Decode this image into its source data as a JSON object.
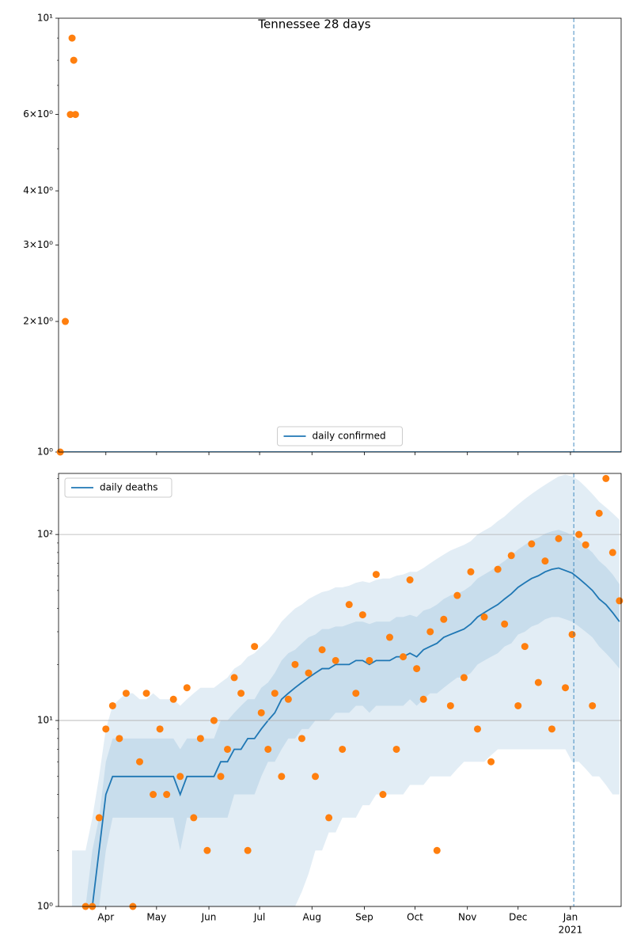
{
  "chart_data": [
    {
      "type": "log-scatter-line",
      "title": "Tennessee 28 days",
      "xlim": [
        0,
        333
      ],
      "ylim": [
        1,
        10
      ],
      "yticks": [
        {
          "value": 1,
          "label": "10⁰"
        },
        {
          "value": 2,
          "label": "2×10⁰"
        },
        {
          "value": 3,
          "label": "3×10⁰"
        },
        {
          "value": 4,
          "label": "4×10⁰"
        },
        {
          "value": 6,
          "label": "6×10⁰"
        },
        {
          "value": 10,
          "label": "10¹"
        }
      ],
      "minor_yticks": [
        5,
        7,
        8,
        9
      ],
      "log_scale": true,
      "grid": false,
      "legend": "lower center",
      "vline": 305,
      "series": [
        {
          "name": "daily confirmed",
          "kind": "line",
          "color": "#1f77b4",
          "x": [
            0,
            333
          ],
          "values": [
            1,
            1
          ]
        },
        {
          "kind": "dots",
          "color": "#ff7f0e",
          "x": [
            1,
            4,
            7,
            8,
            9,
            10
          ],
          "values": [
            1,
            2,
            6,
            9,
            8,
            6
          ]
        }
      ]
    },
    {
      "type": "log-scatter-line",
      "xlim": [
        0,
        333
      ],
      "ylim": [
        1,
        213
      ],
      "xticks": [
        {
          "value": 28,
          "label": "Apr"
        },
        {
          "value": 58,
          "label": "May"
        },
        {
          "value": 89,
          "label": "Jun"
        },
        {
          "value": 119,
          "label": "Jul"
        },
        {
          "value": 150,
          "label": "Aug"
        },
        {
          "value": 181,
          "label": "Sep"
        },
        {
          "value": 211,
          "label": "Oct"
        },
        {
          "value": 242,
          "label": "Nov"
        },
        {
          "value": 272,
          "label": "Dec"
        },
        {
          "value": 303,
          "label": "Jan"
        }
      ],
      "year_label": "2021",
      "yticks": [
        {
          "value": 1,
          "label": "10⁰"
        },
        {
          "value": 10,
          "label": "10¹"
        },
        {
          "value": 100,
          "label": "10²"
        }
      ],
      "minor_yticks": [
        2,
        3,
        4,
        5,
        6,
        7,
        8,
        9,
        20,
        30,
        40,
        50,
        60,
        70,
        80,
        90,
        200
      ],
      "log_scale": true,
      "grid": true,
      "legend": "upper left",
      "vline": 305,
      "band_color": "#1f77b4",
      "x": [
        0,
        4,
        8,
        12,
        16,
        20,
        24,
        28,
        32,
        36,
        40,
        44,
        48,
        52,
        56,
        60,
        64,
        68,
        72,
        76,
        80,
        84,
        88,
        92,
        96,
        100,
        104,
        108,
        112,
        116,
        120,
        124,
        128,
        132,
        136,
        140,
        144,
        148,
        152,
        156,
        160,
        164,
        168,
        172,
        176,
        180,
        184,
        188,
        192,
        196,
        200,
        204,
        208,
        212,
        216,
        220,
        224,
        228,
        232,
        236,
        240,
        244,
        248,
        252,
        256,
        260,
        264,
        268,
        272,
        276,
        280,
        284,
        288,
        292,
        296,
        300,
        304,
        308,
        312,
        316,
        320,
        324,
        328,
        332
      ],
      "bands": [
        {
          "lower": [
            null,
            null,
            0.5,
            0.5,
            0.5,
            0.5,
            0.5,
            0.5,
            0.5,
            0.5,
            0.5,
            0.5,
            0.5,
            0.5,
            0.5,
            0.5,
            0.5,
            0.5,
            0.5,
            0.5,
            0.5,
            0.5,
            0.5,
            0.5,
            0.5,
            0.5,
            0.5,
            0.5,
            0.5,
            0.5,
            0.5,
            0.5,
            0.5,
            0.5,
            1,
            1,
            1.2,
            1.5,
            2,
            2,
            2.5,
            2.5,
            3,
            3,
            3,
            3.5,
            3.5,
            4,
            4,
            4,
            4,
            4,
            4.5,
            4.5,
            4.5,
            5,
            5,
            5,
            5,
            5.5,
            6,
            6,
            6,
            6,
            6.5,
            7,
            7,
            7,
            7,
            7,
            7,
            7,
            7,
            7,
            7,
            7,
            6,
            6,
            5.5,
            5,
            5,
            4.5,
            4,
            4
          ],
          "upper": [
            null,
            null,
            2,
            2,
            2,
            3,
            5,
            9,
            12,
            13,
            14,
            14,
            13,
            13,
            14,
            13,
            13,
            13,
            12,
            13,
            14,
            15,
            15,
            15,
            16,
            17,
            19,
            20,
            22,
            23,
            25,
            27,
            30,
            34,
            37,
            40,
            42,
            45,
            47,
            49,
            50,
            52,
            52,
            53,
            55,
            56,
            55,
            57,
            58,
            58,
            60,
            61,
            63,
            63,
            66,
            70,
            74,
            78,
            82,
            85,
            88,
            92,
            100,
            105,
            110,
            118,
            125,
            135,
            145,
            155,
            165,
            175,
            185,
            195,
            205,
            210,
            205,
            195,
            180,
            165,
            150,
            140,
            130,
            120
          ]
        },
        {
          "lower": [
            null,
            null,
            null,
            null,
            0.5,
            0.5,
            1,
            2,
            3,
            3,
            3,
            3,
            3,
            3,
            3,
            3,
            3,
            3,
            2,
            3,
            3,
            3,
            3,
            3,
            3,
            3,
            4,
            4,
            4,
            4,
            5,
            6,
            6,
            7,
            8,
            8,
            9,
            9,
            10,
            10,
            10,
            11,
            11,
            11,
            12,
            12,
            11,
            12,
            12,
            12,
            12,
            12,
            13,
            12,
            13,
            14,
            14,
            15,
            16,
            17,
            17,
            18,
            20,
            21,
            22,
            23,
            25,
            26,
            29,
            30,
            32,
            33,
            35,
            36,
            36,
            35,
            34,
            32,
            30,
            28,
            25,
            23,
            21,
            19
          ],
          "upper": [
            null,
            null,
            null,
            null,
            1,
            2,
            3,
            6,
            8,
            8,
            8,
            8,
            8,
            8,
            8,
            8,
            8,
            8,
            7,
            8,
            8,
            8,
            8,
            8,
            10,
            10,
            11,
            12,
            13,
            13,
            15,
            16,
            18,
            21,
            23,
            24,
            26,
            28,
            29,
            31,
            31,
            32,
            32,
            33,
            34,
            34,
            33,
            34,
            34,
            34,
            36,
            36,
            37,
            36,
            39,
            40,
            42,
            45,
            47,
            48,
            50,
            53,
            58,
            61,
            64,
            68,
            72,
            77,
            83,
            88,
            93,
            96,
            101,
            104,
            106,
            103,
            99,
            93,
            86,
            80,
            72,
            67,
            61,
            54
          ]
        }
      ],
      "series": [
        {
          "name": "daily deaths",
          "kind": "line",
          "color": "#1f77b4",
          "values": [
            null,
            null,
            null,
            null,
            null,
            1,
            2,
            4,
            5,
            5,
            5,
            5,
            5,
            5,
            5,
            5,
            5,
            5,
            4,
            5,
            5,
            5,
            5,
            5,
            6,
            6,
            7,
            7,
            8,
            8,
            9,
            10,
            11,
            13,
            14,
            15,
            16,
            17,
            18,
            19,
            19,
            20,
            20,
            20,
            21,
            21,
            20,
            21,
            21,
            21,
            22,
            22,
            23,
            22,
            24,
            25,
            26,
            28,
            29,
            30,
            31,
            33,
            36,
            38,
            40,
            42,
            45,
            48,
            52,
            55,
            58,
            60,
            63,
            65,
            66,
            64,
            62,
            58,
            54,
            50,
            45,
            42,
            38,
            34
          ]
        },
        {
          "kind": "dots",
          "color": "#ff7f0e",
          "values": [
            null,
            null,
            null,
            null,
            1,
            1,
            3,
            9,
            12,
            8,
            14,
            1,
            6,
            14,
            4,
            9,
            4,
            13,
            5,
            15,
            3,
            8,
            2,
            10,
            5,
            7,
            17,
            14,
            2,
            25,
            11,
            7,
            14,
            5,
            13,
            20,
            8,
            18,
            5,
            24,
            3,
            21,
            7,
            42,
            14,
            37,
            21,
            61,
            4,
            28,
            7,
            22,
            57,
            19,
            13,
            30,
            2,
            35,
            12,
            47,
            17,
            63,
            9,
            36,
            6,
            65,
            33,
            77,
            12,
            25,
            89,
            16,
            72,
            9,
            95,
            15,
            29,
            100,
            88,
            12,
            130,
            200,
            80,
            44
          ]
        }
      ]
    }
  ]
}
